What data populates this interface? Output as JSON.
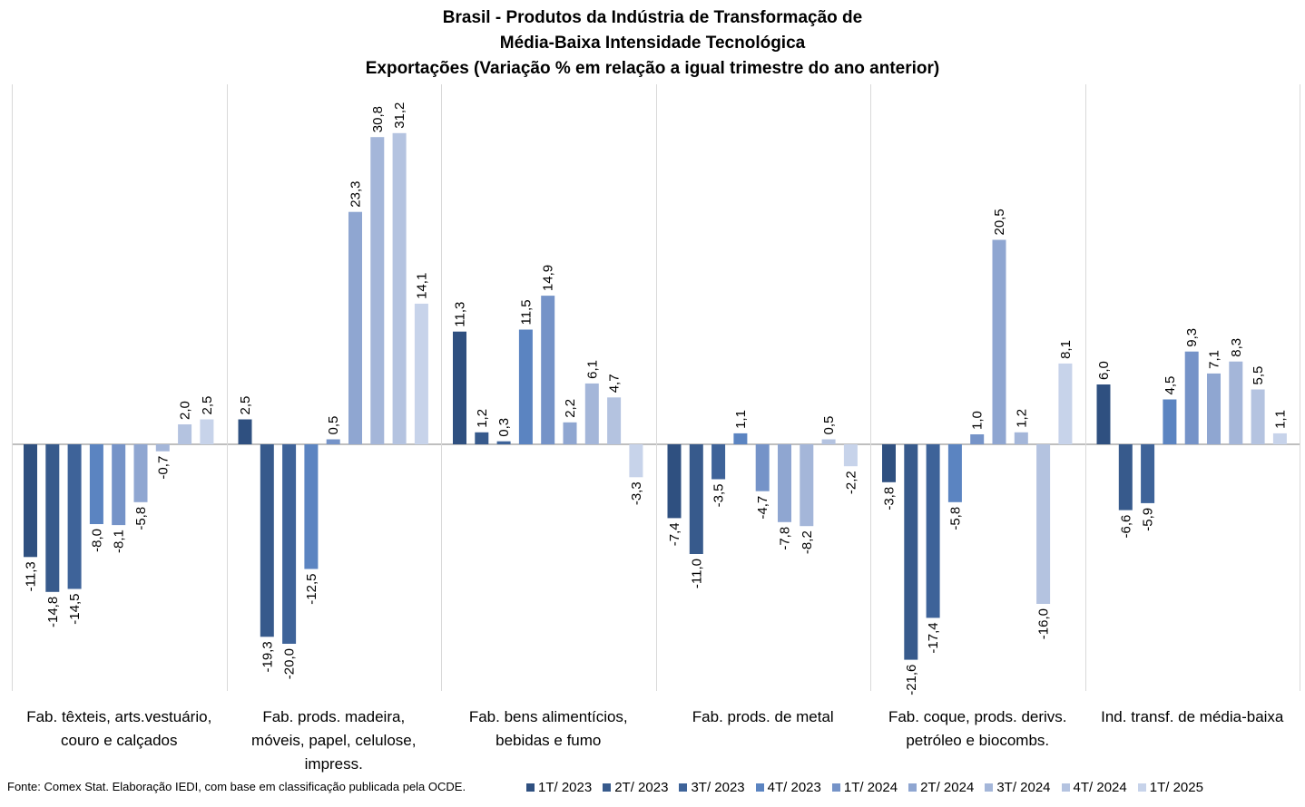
{
  "chart_data": {
    "type": "bar",
    "title_lines": [
      "Brasil - Produtos da Indústria de Transformação de",
      "Média-Baixa Intensidade Tecnológica",
      "Exportações (Variação % em relação a igual trimestre do ano anterior)"
    ],
    "categories": [
      "Fab. têxteis, arts.vestuário, couro e calçados",
      "Fab. prods. madeira, móveis, papel, celulose, impress.",
      "Fab. bens alimentícios, bebidas e fumo",
      "Fab. prods. de metal",
      "Fab. coque, prods. derivs. petróleo e biocombs.",
      "Ind. transf. de média-baixa"
    ],
    "category_label_lines": [
      [
        "Fab. têxteis, arts.vestuário,",
        "couro e calçados"
      ],
      [
        "Fab. prods. madeira,",
        "móveis, papel, celulose,",
        "impress."
      ],
      [
        "Fab. bens alimentícios,",
        "bebidas e fumo"
      ],
      [
        "Fab. prods. de metal"
      ],
      [
        "Fab. coque, prods. derivs.",
        "petróleo e biocombs."
      ],
      [
        "Ind. transf. de média-baixa"
      ]
    ],
    "series": [
      {
        "name": "1T/ 2023",
        "color": "#2f5080",
        "values": [
          -11.3,
          2.5,
          11.3,
          -7.4,
          -3.8,
          6.0
        ]
      },
      {
        "name": "2T/ 2023",
        "color": "#375a8c",
        "values": [
          -14.8,
          -19.3,
          1.2,
          -11.0,
          -21.6,
          -6.6
        ]
      },
      {
        "name": "3T/ 2023",
        "color": "#3e6399",
        "values": [
          -14.5,
          -20.0,
          0.3,
          -3.5,
          -17.4,
          -5.9
        ]
      },
      {
        "name": "4T/ 2023",
        "color": "#5b84c1",
        "values": [
          -8.0,
          -12.5,
          11.5,
          1.1,
          -5.8,
          4.5
        ]
      },
      {
        "name": "1T/ 2024",
        "color": "#7593c8",
        "values": [
          -8.1,
          0.5,
          14.9,
          -4.7,
          1.0,
          9.3
        ]
      },
      {
        "name": "2T/ 2024",
        "color": "#8fa6d1",
        "values": [
          -5.8,
          23.3,
          2.2,
          -7.8,
          20.5,
          7.1
        ]
      },
      {
        "name": "3T/ 2024",
        "color": "#a4b6d9",
        "values": [
          -0.7,
          30.8,
          6.1,
          -8.2,
          1.2,
          8.3
        ]
      },
      {
        "name": "4T/ 2024",
        "color": "#b4c3e0",
        "values": [
          2.0,
          31.2,
          4.7,
          0.5,
          -16.0,
          5.5
        ]
      },
      {
        "name": "1T/ 2025",
        "color": "#c7d3ea",
        "values": [
          2.5,
          14.1,
          -3.3,
          -2.2,
          8.1,
          1.1
        ]
      }
    ],
    "decimal_separator": ",",
    "ylim": [
      -25,
      35
    ],
    "grid": false,
    "legend_position": "bottom-right"
  },
  "source_note": "Fonte: Comex Stat. Elaboração IEDI, com base em classificação publicada pela OCDE."
}
